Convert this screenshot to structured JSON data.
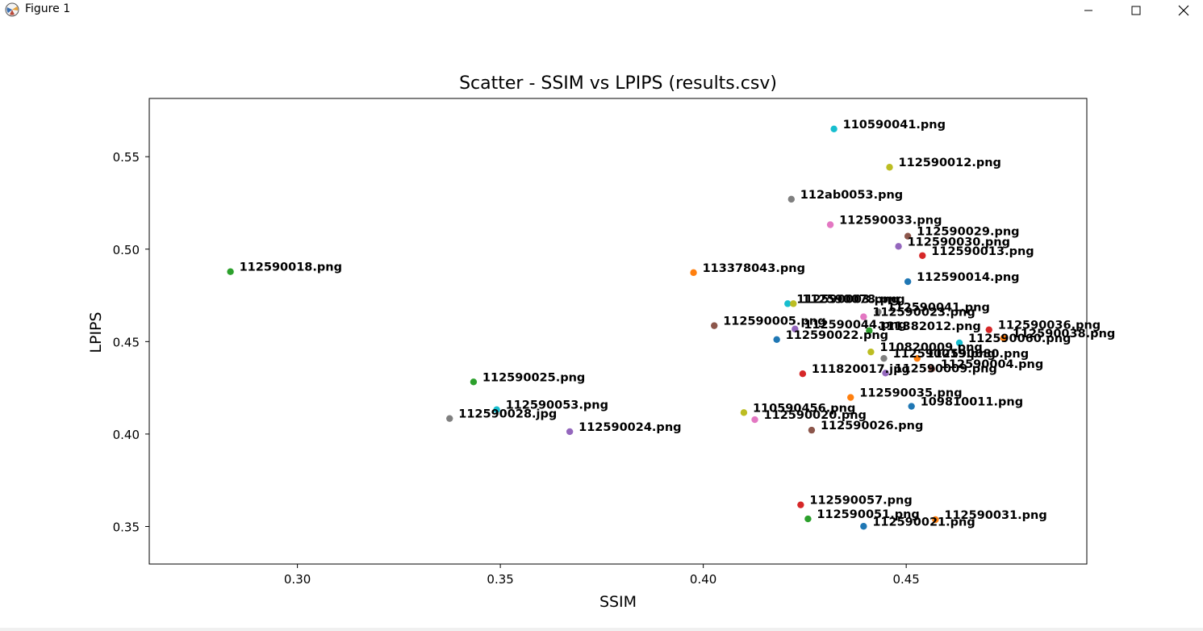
{
  "window": {
    "title": "Figure 1"
  },
  "chart_data": {
    "type": "scatter",
    "title": "Scatter - SSIM vs LPIPS (results.csv)",
    "xlabel": "SSIM",
    "ylabel": "LPIPS",
    "xlim": [
      0.2635,
      0.4945
    ],
    "ylim": [
      0.3297,
      0.5815
    ],
    "xticks": [
      0.3,
      0.35,
      0.4,
      0.45
    ],
    "yticks": [
      0.35,
      0.4,
      0.45,
      0.5,
      0.55
    ],
    "grid": false,
    "points": [
      {
        "label": "112590018.png",
        "x": 0.2835,
        "y": 0.4878,
        "color": "#2ca02c"
      },
      {
        "label": "112590025.png",
        "x": 0.3434,
        "y": 0.4282,
        "color": "#2ca02c"
      },
      {
        "label": "112590053.png",
        "x": 0.3491,
        "y": 0.4132,
        "color": "#17becf"
      },
      {
        "label": "112590028.jpg",
        "x": 0.3375,
        "y": 0.4084,
        "color": "#7f7f7f"
      },
      {
        "label": "112590024.png",
        "x": 0.3671,
        "y": 0.4013,
        "color": "#9467bd"
      },
      {
        "label": "113378043.png",
        "x": 0.3976,
        "y": 0.4873,
        "color": "#ff7f0e"
      },
      {
        "label": "112590005.png",
        "x": 0.4027,
        "y": 0.4586,
        "color": "#8c564b"
      },
      {
        "label": "112590022.png",
        "x": 0.4181,
        "y": 0.4511,
        "color": "#1f77b4"
      },
      {
        "label": "110590456.png",
        "x": 0.41,
        "y": 0.4116,
        "color": "#bcbd22"
      },
      {
        "label": "112590020.png",
        "x": 0.4127,
        "y": 0.4078,
        "color": "#e377c2"
      },
      {
        "label": "112590026.png",
        "x": 0.4267,
        "y": 0.4021,
        "color": "#8c564b"
      },
      {
        "label": "110590041.png",
        "x": 0.4322,
        "y": 0.565,
        "color": "#17becf"
      },
      {
        "label": "112590012.png",
        "x": 0.4459,
        "y": 0.5443,
        "color": "#bcbd22"
      },
      {
        "label": "112ab0053.png",
        "x": 0.4217,
        "y": 0.527,
        "color": "#7f7f7f"
      },
      {
        "label": "112590033.png",
        "x": 0.4313,
        "y": 0.5132,
        "color": "#e377c2"
      },
      {
        "label": "112590029.png",
        "x": 0.4504,
        "y": 0.507,
        "color": "#8c564b"
      },
      {
        "label": "112590030.png",
        "x": 0.4481,
        "y": 0.5015,
        "color": "#9467bd"
      },
      {
        "label": "112590013.png",
        "x": 0.454,
        "y": 0.4965,
        "color": "#d62728"
      },
      {
        "label": "112590014.png",
        "x": 0.4504,
        "y": 0.4824,
        "color": "#1f77b4"
      },
      {
        "label": "112590003.png",
        "x": 0.4208,
        "y": 0.4705,
        "color": "#17becf"
      },
      {
        "label": "112590078.png",
        "x": 0.4222,
        "y": 0.4705,
        "color": "#bcbd22"
      },
      {
        "label": "112590041.png",
        "x": 0.4431,
        "y": 0.4661,
        "color": "#7f7f7f"
      },
      {
        "label": "112590023.png",
        "x": 0.4395,
        "y": 0.4634,
        "color": "#e377c2"
      },
      {
        "label": "112590044.png",
        "x": 0.4226,
        "y": 0.4568,
        "color": "#9467bd"
      },
      {
        "label": "111382012.png",
        "x": 0.4409,
        "y": 0.4559,
        "color": "#2ca02c"
      },
      {
        "label": "112590036.png",
        "x": 0.4704,
        "y": 0.4564,
        "color": "#d62728"
      },
      {
        "label": "112590038.png",
        "x": 0.474,
        "y": 0.4519,
        "color": "#ff7f0e"
      },
      {
        "label": "112590060.png",
        "x": 0.4631,
        "y": 0.4493,
        "color": "#17becf"
      },
      {
        "label": "110820009.png",
        "x": 0.4413,
        "y": 0.4444,
        "color": "#bcbd22"
      },
      {
        "label": "112590019.png",
        "x": 0.4445,
        "y": 0.4409,
        "color": "#7f7f7f"
      },
      {
        "label": "112590080.png",
        "x": 0.4527,
        "y": 0.4409,
        "color": "#ff7f0e"
      },
      {
        "label": "112590004.png",
        "x": 0.4563,
        "y": 0.4352,
        "color": "#8c564b"
      },
      {
        "label": "112590009.png",
        "x": 0.4449,
        "y": 0.433,
        "color": "#9467bd"
      },
      {
        "label": "111820017.jpg",
        "x": 0.4245,
        "y": 0.4326,
        "color": "#d62728"
      },
      {
        "label": "112590035.png",
        "x": 0.4363,
        "y": 0.4198,
        "color": "#ff7f0e"
      },
      {
        "label": "109810011.png",
        "x": 0.4513,
        "y": 0.415,
        "color": "#1f77b4"
      },
      {
        "label": "112590057.png",
        "x": 0.424,
        "y": 0.3617,
        "color": "#d62728"
      },
      {
        "label": "112590051.png",
        "x": 0.4258,
        "y": 0.3541,
        "color": "#2ca02c"
      },
      {
        "label": "112590031.png",
        "x": 0.4572,
        "y": 0.3537,
        "color": "#ff7f0e"
      },
      {
        "label": "112590021.png",
        "x": 0.4395,
        "y": 0.3501,
        "color": "#1f77b4"
      }
    ]
  }
}
